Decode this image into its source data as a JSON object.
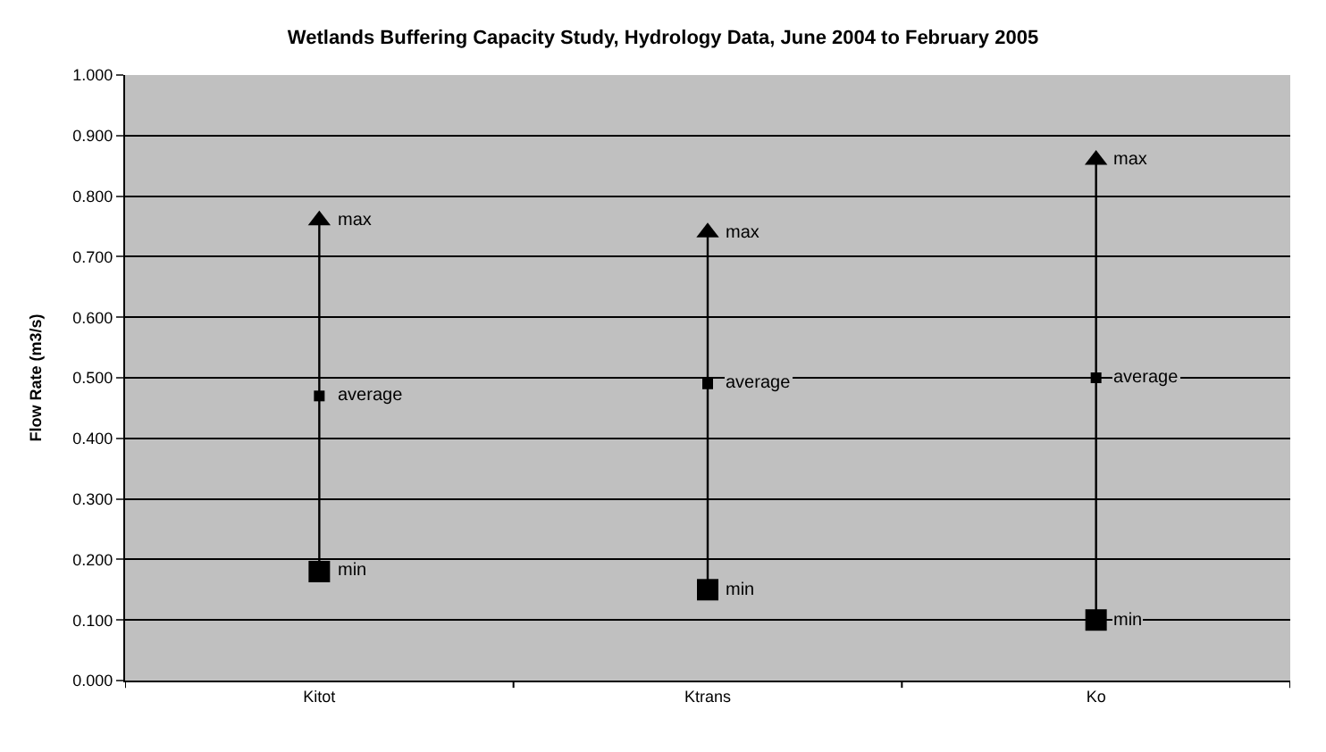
{
  "chart_data": {
    "type": "scatter",
    "title": "Wetlands Buffering Capacity Study, Hydrology Data, June 2004 to February 2005",
    "ylabel": "Flow Rate (m3/s)",
    "categories": [
      "Kitot",
      "Ktrans",
      "Ko"
    ],
    "series": [
      {
        "name": "max",
        "color": "#000000",
        "marker": "triangle",
        "values": [
          0.76,
          0.74,
          0.86
        ]
      },
      {
        "name": "average",
        "color": "#000000",
        "marker": "square",
        "values": [
          0.47,
          0.49,
          0.5
        ]
      },
      {
        "name": "min",
        "color": "#000000",
        "marker": "square",
        "values": [
          0.18,
          0.15,
          0.1
        ]
      }
    ],
    "ylim": [
      0,
      1
    ],
    "yticks": [
      {
        "value": 0,
        "label": "0.000"
      },
      {
        "value": 0.1,
        "label": "0.100"
      },
      {
        "value": 0.2,
        "label": "0.200"
      },
      {
        "value": 0.3,
        "label": "0.300"
      },
      {
        "value": 0.4,
        "label": "0.400"
      },
      {
        "value": 0.5,
        "label": "0.500"
      },
      {
        "value": 0.6,
        "label": "0.600"
      },
      {
        "value": 0.7,
        "label": "0.700"
      },
      {
        "value": 0.8,
        "label": "0.800"
      },
      {
        "value": 0.9,
        "label": "0.900"
      },
      {
        "value": 1,
        "label": "1.000"
      }
    ],
    "grid": "y"
  }
}
